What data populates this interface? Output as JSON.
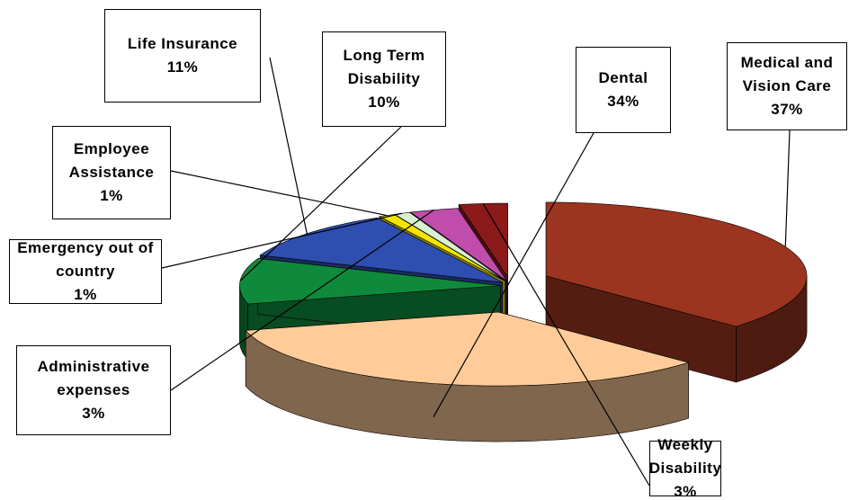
{
  "chart_data": {
    "type": "pie3d",
    "categories": [
      "Medical and Vision Care",
      "Dental",
      "Long Term Disability",
      "Life Insurance",
      "Employee Assistance",
      "Emergency out of country",
      "Administrative expenses",
      "Weekly Disability"
    ],
    "values": [
      37,
      34,
      10,
      11,
      1,
      1,
      3,
      3
    ],
    "value_labels": [
      "37%",
      "34%",
      "10%",
      "11%",
      "1%",
      "1%",
      "3%",
      "3%"
    ],
    "colors": [
      "#9b3520",
      "#ffcc99",
      "#0f8a3c",
      "#2e4fb0",
      "#f2e500",
      "#d9f0d0",
      "#c04cab",
      "#8b1a1a"
    ]
  }
}
